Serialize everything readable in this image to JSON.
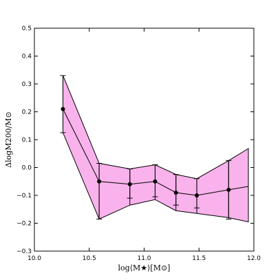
{
  "chart_data": {
    "type": "line",
    "title": "",
    "xlabel": "log⟨M★⟩[M⊙]",
    "ylabel": "ΔlogM200/M⊙",
    "xlim": [
      10.0,
      12.0
    ],
    "ylim": [
      -0.3,
      0.5
    ],
    "xticks": [
      10.0,
      10.5,
      11.0,
      11.5,
      12.0
    ],
    "xtick_labels": [
      "10.0",
      "10.5",
      "11.0",
      "11.5",
      "12.0"
    ],
    "yticks": [
      -0.3,
      -0.2,
      -0.1,
      0.0,
      0.1,
      0.2,
      0.3,
      0.4,
      0.5
    ],
    "ytick_labels": [
      "−0.3",
      "−0.2",
      "−0.1",
      "0.0",
      "0.1",
      "0.2",
      "0.3",
      "0.4",
      "0.5"
    ],
    "grid": false,
    "series": [
      {
        "x": [
          10.26,
          10.59,
          10.87,
          11.1,
          11.29,
          11.48,
          11.77
        ],
        "y": [
          0.21,
          -0.05,
          -0.06,
          -0.05,
          -0.09,
          -0.1,
          -0.08
        ],
        "yerr_low": [
          0.125,
          -0.185,
          -0.11,
          -0.105,
          -0.135,
          -0.145,
          -0.185
        ],
        "yerr_high": [
          0.33,
          0.015,
          -0.005,
          0.01,
          -0.025,
          -0.04,
          0.025
        ],
        "marker": "circle",
        "color": "#000000"
      }
    ],
    "band": {
      "color": "#f9b2ec",
      "x": [
        10.26,
        10.59,
        10.87,
        11.1,
        11.29,
        11.48,
        11.77,
        11.95
      ],
      "upper": [
        0.33,
        0.015,
        -0.005,
        0.01,
        -0.025,
        -0.04,
        0.025,
        0.068
      ],
      "lower": [
        0.125,
        -0.185,
        -0.135,
        -0.115,
        -0.155,
        -0.165,
        -0.18,
        -0.195
      ],
      "median": [
        0.21,
        -0.05,
        -0.06,
        -0.05,
        -0.09,
        -0.1,
        -0.08,
        -0.068
      ]
    }
  }
}
